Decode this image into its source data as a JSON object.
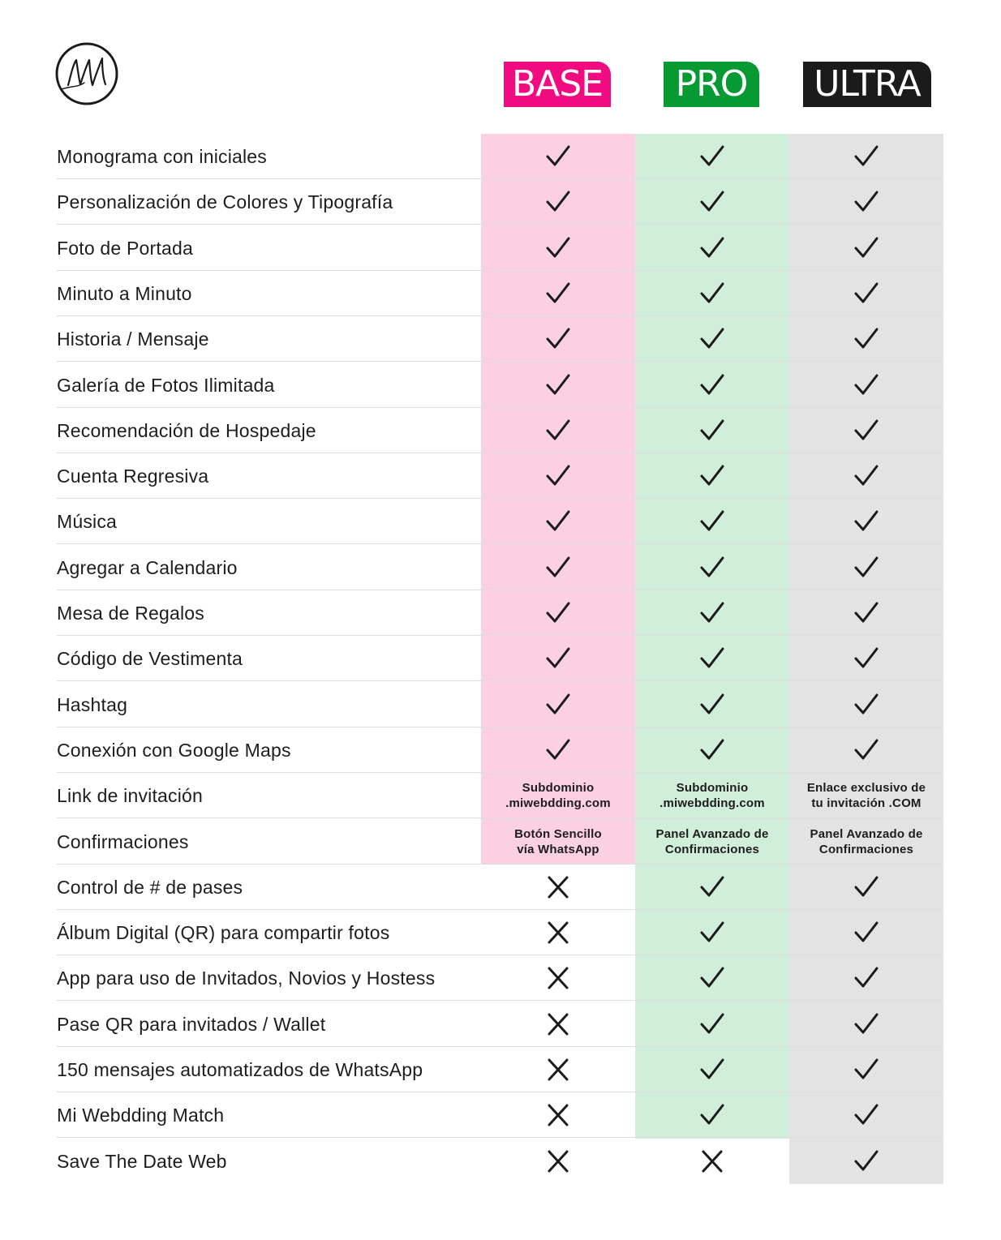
{
  "brand": {
    "logo_letters": "MW",
    "logo_icon": "monogram-logo"
  },
  "colors": {
    "base": "#f10b80",
    "pro": "#079a33",
    "ultra": "#1b1b1b",
    "base_bg": "#fbd0e3",
    "pro_bg": "#d0eed9",
    "ultra_bg": "#e3e3e3"
  },
  "plans": [
    {
      "key": "base",
      "label": "BASE"
    },
    {
      "key": "pro",
      "label": "PRO"
    },
    {
      "key": "ultra",
      "label": "ULTRA"
    }
  ],
  "rows": [
    {
      "feature": "Monograma con iniciales",
      "values": [
        "check",
        "check",
        "check"
      ]
    },
    {
      "feature": "Personalización de Colores y Tipografía",
      "values": [
        "check",
        "check",
        "check"
      ]
    },
    {
      "feature": "Foto de Portada",
      "values": [
        "check",
        "check",
        "check"
      ]
    },
    {
      "feature": "Minuto a Minuto",
      "values": [
        "check",
        "check",
        "check"
      ]
    },
    {
      "feature": "Historia / Mensaje",
      "values": [
        "check",
        "check",
        "check"
      ]
    },
    {
      "feature": "Galería de Fotos Ilimitada",
      "values": [
        "check",
        "check",
        "check"
      ]
    },
    {
      "feature": "Recomendación de Hospedaje",
      "values": [
        "check",
        "check",
        "check"
      ]
    },
    {
      "feature": "Cuenta Regresiva",
      "values": [
        "check",
        "check",
        "check"
      ]
    },
    {
      "feature": "Música",
      "values": [
        "check",
        "check",
        "check"
      ]
    },
    {
      "feature": "Agregar a Calendario",
      "values": [
        "check",
        "check",
        "check"
      ]
    },
    {
      "feature": "Mesa de Regalos",
      "values": [
        "check",
        "check",
        "check"
      ]
    },
    {
      "feature": "Código de Vestimenta",
      "values": [
        "check",
        "check",
        "check"
      ]
    },
    {
      "feature": "Hashtag",
      "values": [
        "check",
        "check",
        "check"
      ]
    },
    {
      "feature": "Conexión con Google Maps",
      "values": [
        "check",
        "check",
        "check"
      ]
    },
    {
      "feature": "Link de invitación",
      "values": [
        {
          "text": "Subdominio\n.miwebdding.com"
        },
        {
          "text": "Subdominio\n.miwebdding.com"
        },
        {
          "text": "Enlace exclusivo de\ntu invitación .COM"
        }
      ]
    },
    {
      "feature": "Confirmaciones",
      "values": [
        {
          "text": "Botón Sencillo\nvía WhatsApp"
        },
        {
          "text": "Panel Avanzado de\nConfirmaciones"
        },
        {
          "text": "Panel Avanzado de\nConfirmaciones"
        }
      ]
    },
    {
      "feature": "Control de # de pases",
      "values": [
        "cross",
        "check",
        "check"
      ]
    },
    {
      "feature": "Álbum Digital (QR) para compartir fotos",
      "values": [
        "cross",
        "check",
        "check"
      ]
    },
    {
      "feature": "App para uso de Invitados, Novios y Hostess",
      "values": [
        "cross",
        "check",
        "check"
      ]
    },
    {
      "feature": "Pase QR para invitados / Wallet",
      "values": [
        "cross",
        "check",
        "check"
      ]
    },
    {
      "feature": "150 mensajes automatizados de WhatsApp",
      "values": [
        "cross",
        "check",
        "check"
      ]
    },
    {
      "feature": "Mi Webdding Match",
      "values": [
        "cross",
        "check",
        "check"
      ]
    },
    {
      "feature": "Save The Date Web",
      "values": [
        "cross",
        "cross",
        "check"
      ]
    }
  ]
}
